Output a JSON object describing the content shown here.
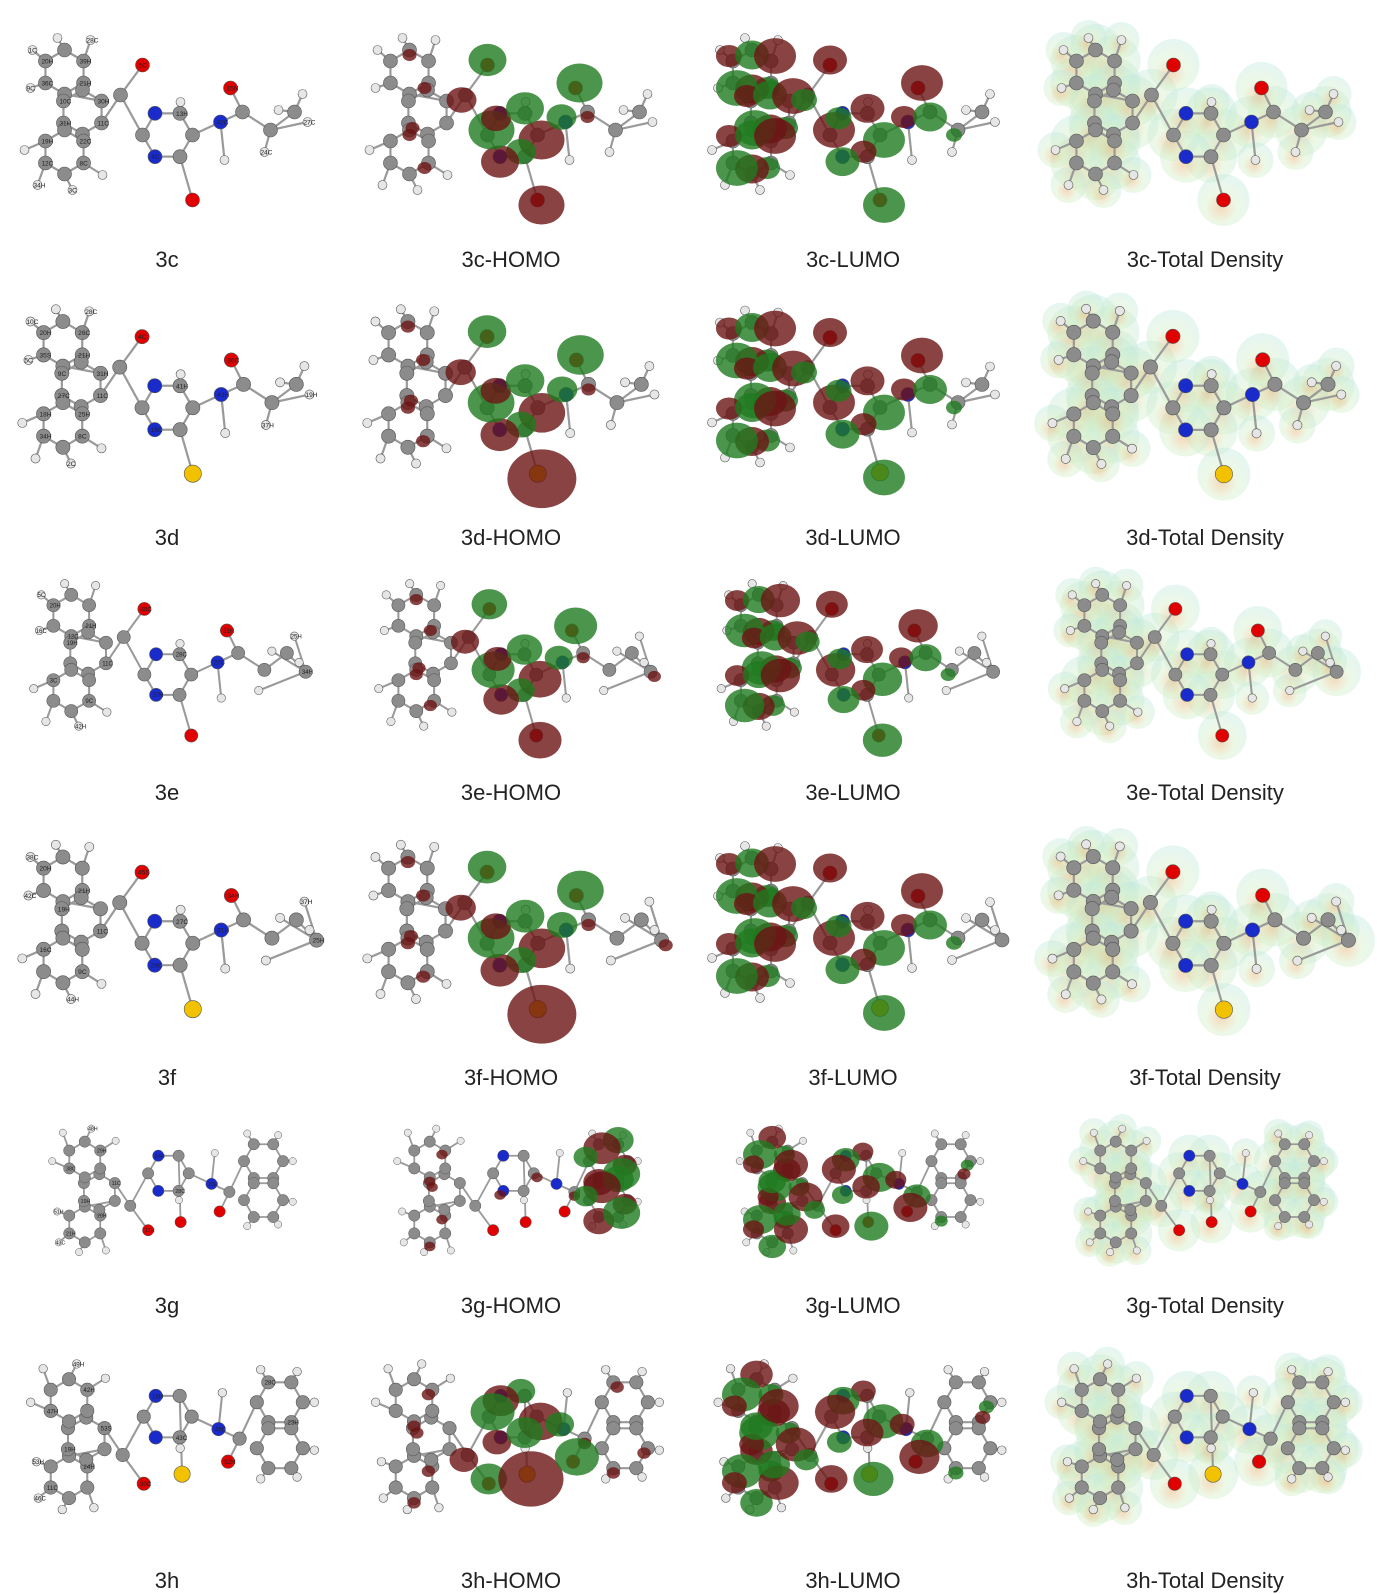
{
  "colors": {
    "carbon": "#8c8c8c",
    "hydrogen": "#e6e6e6",
    "oxygen": "#e00000",
    "nitrogen": "#1a2bcc",
    "sulfur": "#f2c200",
    "homo_dark": "#6b1414",
    "homo_green": "#1f7a1f",
    "esp_cyan": "#bfe8e0",
    "esp_green": "#d6efc6",
    "esp_orange": "#e8b070"
  },
  "columns": [
    "structure",
    "homo",
    "lumo",
    "total-density"
  ],
  "rows": [
    {
      "id": "3c",
      "sulfur": false,
      "tail": "ethyl",
      "captions": [
        "3c",
        "3c-HOMO",
        "3c-LUMO",
        "3c-Total Density"
      ],
      "atom_labels": [
        "21H",
        "20H",
        "11C",
        "10C",
        "8C",
        "19H",
        "1C",
        "9C",
        "3C",
        "5C",
        "4C",
        "13H",
        "42C",
        "15N",
        "24C",
        "27C",
        "36C",
        "39H",
        "31H",
        "30H",
        "12C",
        "22C",
        "28C",
        "34H"
      ]
    },
    {
      "id": "3d",
      "sulfur": true,
      "tail": "ethyl",
      "captions": [
        "3d",
        "3d-HOMO",
        "3d-LUMO",
        "3d-Total Density"
      ],
      "atom_labels": [
        "21H",
        "20H",
        "11C",
        "9C",
        "8C",
        "18H",
        "10C",
        "5C",
        "2C",
        "4C",
        "16C",
        "41H",
        "43H",
        "36C",
        "37H",
        "19H",
        "35S",
        "26C",
        "27C",
        "31H",
        "34H",
        "25H",
        "28C"
      ]
    },
    {
      "id": "3e",
      "sulfur": false,
      "tail": "propyl",
      "captions": [
        "3e",
        "3e-HOMO",
        "3e-LUMO",
        "3e-Total Density"
      ],
      "atom_labels": [
        "21H",
        "20H",
        "11C",
        "19H",
        "9C",
        "3C",
        "5C",
        "16C",
        "42H",
        "40C",
        "37H",
        "28C",
        "27C",
        "31H",
        "34H",
        "25H",
        "12C"
      ]
    },
    {
      "id": "3f",
      "sulfur": true,
      "tail": "propyl",
      "captions": [
        "3f",
        "3f-HOMO",
        "3f-LUMO",
        "3f-Total Density"
      ],
      "atom_labels": [
        "21H",
        "20H",
        "11C",
        "19H",
        "9C",
        "16C",
        "38C",
        "42C",
        "44H",
        "45S",
        "28C",
        "27C",
        "31H",
        "34H",
        "25H",
        "37H"
      ]
    },
    {
      "id": "3g",
      "sulfur": false,
      "tail": "phenyl",
      "captions": [
        "3g",
        "3g-HOMO",
        "3g-LUMO",
        "3g-Total Density"
      ],
      "atom_labels": [
        "20H",
        "21H",
        "11C",
        "19H",
        "29H",
        "38C",
        "43C",
        "51H",
        "48H",
        "17H",
        "24H",
        "28C",
        "23H"
      ]
    },
    {
      "id": "3h",
      "sulfur": true,
      "tail": "phenyl",
      "captions": [
        "3h",
        "3h-HOMO",
        "3h-LUMO",
        "3h-Total Density"
      ],
      "atom_labels": [
        "24H",
        "11C",
        "53S",
        "19H",
        "42H",
        "47H",
        "46C",
        "53H",
        "49H",
        "30C",
        "18H",
        "43C",
        "45C",
        "52H",
        "28C",
        "23H"
      ]
    }
  ]
}
